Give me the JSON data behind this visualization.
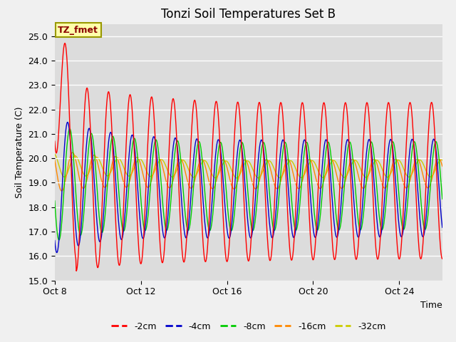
{
  "title": "Tonzi Soil Temperatures Set B",
  "xlabel": "Time",
  "ylabel": "Soil Temperature (C)",
  "ylim": [
    15.0,
    25.5
  ],
  "yticks": [
    15.0,
    16.0,
    17.0,
    18.0,
    19.0,
    20.0,
    21.0,
    22.0,
    23.0,
    24.0,
    25.0
  ],
  "xtick_labels": [
    "Oct 8",
    "Oct 12",
    "Oct 16",
    "Oct 20",
    "Oct 24"
  ],
  "xtick_positions": [
    0,
    4,
    8,
    12,
    16
  ],
  "colors": {
    "-2cm": "#ff0000",
    "-4cm": "#0000cc",
    "-8cm": "#00cc00",
    "-16cm": "#ff8800",
    "-32cm": "#cccc00"
  },
  "annotation_text": "TZ_fmet",
  "plot_bg_color": "#dcdcdc",
  "fig_bg_color": "#f0f0f0",
  "n_days": 18,
  "sampling_per_day": 48,
  "title_fontsize": 12,
  "label_fontsize": 9,
  "tick_fontsize": 9
}
